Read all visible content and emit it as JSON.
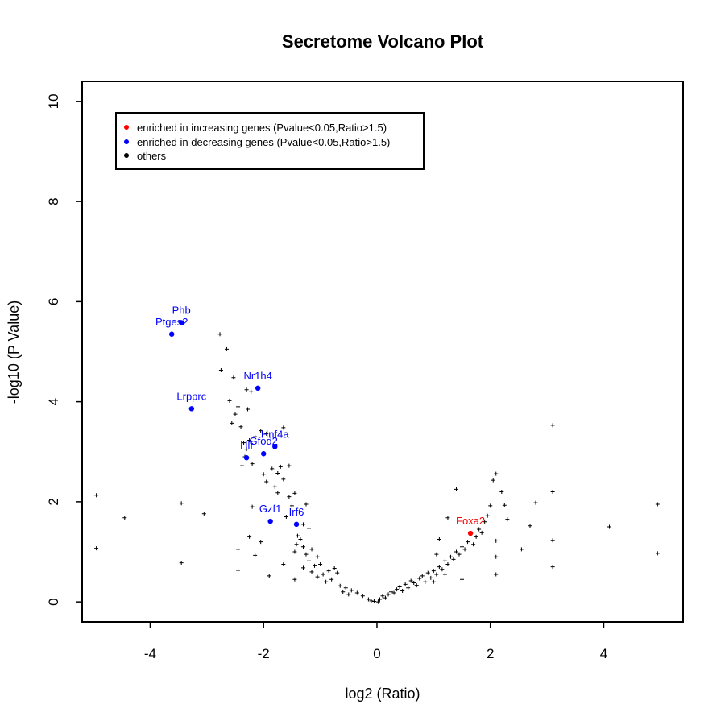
{
  "chart_data": {
    "type": "scatter",
    "title": "Secretome Volcano Plot",
    "xlabel": "log2 (Ratio)",
    "ylabel": "-log10 (P Value)",
    "xlim": [
      -5.2,
      5.4
    ],
    "ylim": [
      -0.4,
      10.4
    ],
    "xticks": [
      -4,
      -2,
      0,
      2,
      4
    ],
    "xtick_labels": [
      "-4",
      "-2",
      "0",
      "2",
      "4"
    ],
    "yticks": [
      0,
      2,
      4,
      6,
      8,
      10
    ],
    "ytick_labels": [
      "0",
      "2",
      "4",
      "6",
      "8",
      "10"
    ],
    "grid": false,
    "legend": {
      "position": "top-left",
      "entries": [
        {
          "label": "enriched in increasing genes (Pvalue<0.05,Ratio>1.5)",
          "color": "#ff0000"
        },
        {
          "label": "enriched in decreasing genes (Pvalue<0.05,Ratio>1.5)",
          "color": "#0000ff"
        },
        {
          "label": "others",
          "color": "#000000"
        }
      ]
    },
    "series": [
      {
        "name": "enriched in increasing genes",
        "color": "#ff0000",
        "points": [
          {
            "x": 1.65,
            "y": 1.37,
            "label": "Foxa2"
          }
        ]
      },
      {
        "name": "enriched in decreasing genes",
        "color": "#0000ff",
        "points": [
          {
            "x": -3.62,
            "y": 5.35,
            "label": "Ptges2"
          },
          {
            "x": -3.45,
            "y": 5.58,
            "label": "Phb"
          },
          {
            "x": -2.1,
            "y": 4.27,
            "label": "Nr1h4"
          },
          {
            "x": -3.27,
            "y": 3.86,
            "label": "Lrpprc"
          },
          {
            "x": -1.8,
            "y": 3.1,
            "label": "Hnf4a"
          },
          {
            "x": -2.0,
            "y": 2.96,
            "label": "Gfod2"
          },
          {
            "x": -2.3,
            "y": 2.88,
            "label": "Hlf"
          },
          {
            "x": -1.88,
            "y": 1.61,
            "label": "Gzf1"
          },
          {
            "x": -1.42,
            "y": 1.55,
            "label": "Irf6"
          }
        ]
      },
      {
        "name": "others",
        "color": "#000000",
        "points": [
          {
            "x": -4.95,
            "y": 2.13
          },
          {
            "x": -4.95,
            "y": 1.07
          },
          {
            "x": -4.45,
            "y": 1.68
          },
          {
            "x": -3.45,
            "y": 1.97
          },
          {
            "x": -3.45,
            "y": 0.78
          },
          {
            "x": -3.05,
            "y": 1.76
          },
          {
            "x": -2.77,
            "y": 5.35
          },
          {
            "x": -2.65,
            "y": 5.05
          },
          {
            "x": -2.75,
            "y": 4.63
          },
          {
            "x": -2.53,
            "y": 4.48
          },
          {
            "x": -2.6,
            "y": 4.02
          },
          {
            "x": -2.45,
            "y": 3.9
          },
          {
            "x": -2.5,
            "y": 3.75
          },
          {
            "x": -2.56,
            "y": 3.57
          },
          {
            "x": -2.3,
            "y": 4.24
          },
          {
            "x": -2.22,
            "y": 4.2
          },
          {
            "x": -2.28,
            "y": 3.85
          },
          {
            "x": -2.4,
            "y": 3.5
          },
          {
            "x": -2.35,
            "y": 3.18
          },
          {
            "x": -2.25,
            "y": 3.23
          },
          {
            "x": -2.15,
            "y": 3.3
          },
          {
            "x": -2.05,
            "y": 3.42
          },
          {
            "x": -1.95,
            "y": 3.36
          },
          {
            "x": -1.65,
            "y": 3.48
          },
          {
            "x": -2.33,
            "y": 2.9
          },
          {
            "x": -2.2,
            "y": 2.76
          },
          {
            "x": -2.38,
            "y": 2.72
          },
          {
            "x": -2.0,
            "y": 2.55
          },
          {
            "x": -1.95,
            "y": 2.4
          },
          {
            "x": -1.85,
            "y": 2.66
          },
          {
            "x": -1.75,
            "y": 2.57
          },
          {
            "x": -1.7,
            "y": 2.7
          },
          {
            "x": -1.65,
            "y": 2.45
          },
          {
            "x": -1.8,
            "y": 2.3
          },
          {
            "x": -1.75,
            "y": 2.18
          },
          {
            "x": -1.55,
            "y": 2.72
          },
          {
            "x": -1.55,
            "y": 2.1
          },
          {
            "x": -1.45,
            "y": 2.17
          },
          {
            "x": -1.5,
            "y": 1.92
          },
          {
            "x": -1.25,
            "y": 1.95
          },
          {
            "x": -1.6,
            "y": 1.7
          },
          {
            "x": -1.3,
            "y": 1.55
          },
          {
            "x": -1.2,
            "y": 1.47
          },
          {
            "x": -1.4,
            "y": 1.32
          },
          {
            "x": -1.35,
            "y": 1.25
          },
          {
            "x": -1.42,
            "y": 1.15
          },
          {
            "x": -1.3,
            "y": 1.1
          },
          {
            "x": -1.45,
            "y": 1.0
          },
          {
            "x": -1.15,
            "y": 1.05
          },
          {
            "x": -1.25,
            "y": 0.95
          },
          {
            "x": -1.05,
            "y": 0.9
          },
          {
            "x": -1.2,
            "y": 0.82
          },
          {
            "x": -1.1,
            "y": 0.72
          },
          {
            "x": -1.0,
            "y": 0.75
          },
          {
            "x": -1.3,
            "y": 0.68
          },
          {
            "x": -1.15,
            "y": 0.6
          },
          {
            "x": -0.95,
            "y": 0.55
          },
          {
            "x": -0.85,
            "y": 0.62
          },
          {
            "x": -0.75,
            "y": 0.67
          },
          {
            "x": -0.7,
            "y": 0.58
          },
          {
            "x": -0.8,
            "y": 0.45
          },
          {
            "x": -0.9,
            "y": 0.4
          },
          {
            "x": -1.05,
            "y": 0.5
          },
          {
            "x": -1.45,
            "y": 0.45
          },
          {
            "x": -0.65,
            "y": 0.32
          },
          {
            "x": -0.55,
            "y": 0.28
          },
          {
            "x": -0.6,
            "y": 0.2
          },
          {
            "x": -0.45,
            "y": 0.23
          },
          {
            "x": -0.5,
            "y": 0.15
          },
          {
            "x": -0.35,
            "y": 0.18
          },
          {
            "x": -0.25,
            "y": 0.12
          },
          {
            "x": -0.15,
            "y": 0.05
          },
          {
            "x": -0.1,
            "y": 0.02
          },
          {
            "x": -0.05,
            "y": 0.01
          },
          {
            "x": 0.02,
            "y": 0.0
          },
          {
            "x": -2.3,
            "y": 3.05
          },
          {
            "x": -2.2,
            "y": 1.9
          },
          {
            "x": -2.25,
            "y": 1.3
          },
          {
            "x": -2.15,
            "y": 0.93
          },
          {
            "x": -2.45,
            "y": 1.05
          },
          {
            "x": -2.45,
            "y": 0.63
          },
          {
            "x": -2.05,
            "y": 1.2
          },
          {
            "x": -1.9,
            "y": 0.52
          },
          {
            "x": -1.65,
            "y": 0.75
          },
          {
            "x": 0.05,
            "y": 0.05
          },
          {
            "x": 0.1,
            "y": 0.12
          },
          {
            "x": 0.15,
            "y": 0.08
          },
          {
            "x": 0.2,
            "y": 0.15
          },
          {
            "x": 0.25,
            "y": 0.2
          },
          {
            "x": 0.3,
            "y": 0.18
          },
          {
            "x": 0.35,
            "y": 0.25
          },
          {
            "x": 0.4,
            "y": 0.3
          },
          {
            "x": 0.45,
            "y": 0.22
          },
          {
            "x": 0.5,
            "y": 0.35
          },
          {
            "x": 0.55,
            "y": 0.28
          },
          {
            "x": 0.6,
            "y": 0.42
          },
          {
            "x": 0.65,
            "y": 0.38
          },
          {
            "x": 0.7,
            "y": 0.33
          },
          {
            "x": 0.75,
            "y": 0.47
          },
          {
            "x": 0.8,
            "y": 0.52
          },
          {
            "x": 0.85,
            "y": 0.4
          },
          {
            "x": 0.9,
            "y": 0.58
          },
          {
            "x": 0.95,
            "y": 0.48
          },
          {
            "x": 1.0,
            "y": 0.62
          },
          {
            "x": 1.05,
            "y": 0.55
          },
          {
            "x": 1.1,
            "y": 0.7
          },
          {
            "x": 1.15,
            "y": 0.65
          },
          {
            "x": 1.2,
            "y": 0.82
          },
          {
            "x": 1.25,
            "y": 0.75
          },
          {
            "x": 1.3,
            "y": 0.9
          },
          {
            "x": 1.35,
            "y": 0.85
          },
          {
            "x": 1.4,
            "y": 1.0
          },
          {
            "x": 1.45,
            "y": 0.95
          },
          {
            "x": 1.5,
            "y": 1.1
          },
          {
            "x": 1.55,
            "y": 1.05
          },
          {
            "x": 1.6,
            "y": 1.2
          },
          {
            "x": 1.7,
            "y": 1.15
          },
          {
            "x": 1.75,
            "y": 1.3
          },
          {
            "x": 1.8,
            "y": 1.45
          },
          {
            "x": 1.85,
            "y": 1.38
          },
          {
            "x": 1.9,
            "y": 1.6
          },
          {
            "x": 1.95,
            "y": 1.72
          },
          {
            "x": 2.0,
            "y": 1.92
          },
          {
            "x": 2.05,
            "y": 2.43
          },
          {
            "x": 2.1,
            "y": 2.56
          },
          {
            "x": 2.2,
            "y": 2.2
          },
          {
            "x": 2.25,
            "y": 1.93
          },
          {
            "x": 2.3,
            "y": 1.65
          },
          {
            "x": 2.1,
            "y": 1.22
          },
          {
            "x": 2.1,
            "y": 0.9
          },
          {
            "x": 2.1,
            "y": 0.55
          },
          {
            "x": 1.5,
            "y": 0.45
          },
          {
            "x": 1.4,
            "y": 2.25
          },
          {
            "x": 1.25,
            "y": 1.68
          },
          {
            "x": 1.1,
            "y": 1.25
          },
          {
            "x": 1.05,
            "y": 0.95
          },
          {
            "x": 1.2,
            "y": 0.55
          },
          {
            "x": 1.0,
            "y": 0.4
          },
          {
            "x": 2.55,
            "y": 1.05
          },
          {
            "x": 2.7,
            "y": 1.52
          },
          {
            "x": 2.8,
            "y": 1.98
          },
          {
            "x": 3.1,
            "y": 3.53
          },
          {
            "x": 3.1,
            "y": 2.2
          },
          {
            "x": 3.1,
            "y": 1.23
          },
          {
            "x": 3.1,
            "y": 0.7
          },
          {
            "x": 4.1,
            "y": 1.5
          },
          {
            "x": 4.95,
            "y": 1.95
          },
          {
            "x": 4.95,
            "y": 0.97
          }
        ]
      }
    ]
  }
}
